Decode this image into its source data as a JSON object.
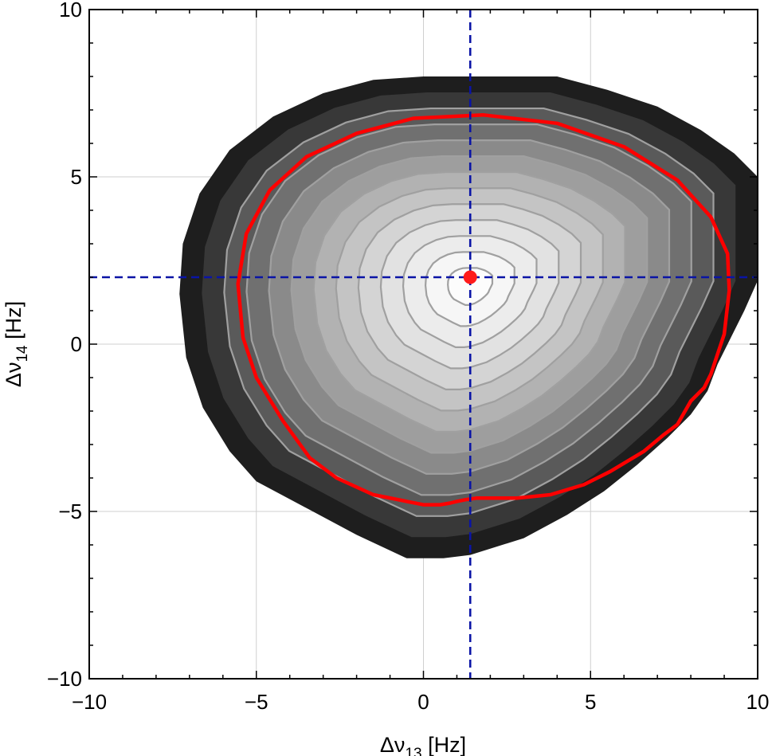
{
  "chart_data": {
    "type": "contour",
    "xlabel_parts": {
      "main": "Δν",
      "sub": "13",
      "unit": " [Hz]"
    },
    "ylabel_parts": {
      "main": "Δν",
      "sub": "14",
      "unit": " [Hz]"
    },
    "xlim": [
      -10,
      10
    ],
    "ylim": [
      -10,
      10
    ],
    "x_ticks": [
      {
        "value": -10,
        "label": "−10"
      },
      {
        "value": -5,
        "label": "−5"
      },
      {
        "value": 0,
        "label": "0"
      },
      {
        "value": 5,
        "label": "5"
      },
      {
        "value": 10,
        "label": "10"
      }
    ],
    "y_ticks": [
      {
        "value": -10,
        "label": "−10"
      },
      {
        "value": -5,
        "label": "−5"
      },
      {
        "value": 0,
        "label": "0"
      },
      {
        "value": 5,
        "label": "5"
      },
      {
        "value": 10,
        "label": "10"
      }
    ],
    "grid": true,
    "colors": {
      "region_levels": [
        "#1e1e1e",
        "#383838",
        "#5a5a5a",
        "#707070",
        "#8a8a8a",
        "#9e9e9e",
        "#b2b2b2",
        "#c4c4c4",
        "#d4d4d4",
        "#e2e2e2",
        "#ececec",
        "#f6f6f6",
        "#fcfcfc"
      ],
      "contour_line": "#a0a0a0",
      "highlight_contour": "#ff0000",
      "reference_lines": "#0a14a6",
      "marker": "#ff1a1a"
    },
    "best_fit_point": {
      "x": 1.4,
      "y": 2.0
    },
    "reference_lines": {
      "x": 1.4,
      "y": 2.0
    },
    "outer_boundary": [
      [
        1.6,
        8.0
      ],
      [
        4.0,
        8.0
      ],
      [
        5.5,
        7.6
      ],
      [
        7.0,
        7.1
      ],
      [
        8.3,
        6.4
      ],
      [
        9.3,
        5.7
      ],
      [
        10.0,
        5.0
      ],
      [
        10.0,
        1.9
      ],
      [
        9.6,
        1.0
      ],
      [
        9.2,
        0.2
      ],
      [
        8.8,
        -0.6
      ],
      [
        8.5,
        -1.4
      ],
      [
        8.0,
        -2.1
      ],
      [
        7.3,
        -2.8
      ],
      [
        6.4,
        -3.6
      ],
      [
        5.4,
        -4.4
      ],
      [
        4.3,
        -5.1
      ],
      [
        3.0,
        -5.8
      ],
      [
        1.4,
        -6.3
      ],
      [
        0.6,
        -6.4
      ],
      [
        -0.5,
        -6.4
      ],
      [
        -2.0,
        -5.7
      ],
      [
        -3.5,
        -4.9
      ],
      [
        -5.0,
        -4.1
      ],
      [
        -5.8,
        -3.2
      ],
      [
        -6.6,
        -1.9
      ],
      [
        -7.1,
        -0.4
      ],
      [
        -7.3,
        1.5
      ],
      [
        -7.2,
        3.0
      ],
      [
        -6.7,
        4.5
      ],
      [
        -5.8,
        5.8
      ],
      [
        -4.5,
        6.8
      ],
      [
        -3.0,
        7.5
      ],
      [
        -1.5,
        7.9
      ],
      [
        0.0,
        8.0
      ]
    ],
    "center": {
      "x": 1.4,
      "y": 1.8
    },
    "red_contour": [
      [
        1.8,
        6.85
      ],
      [
        4.0,
        6.6
      ],
      [
        6.0,
        5.9
      ],
      [
        7.6,
        4.9
      ],
      [
        8.6,
        3.8
      ],
      [
        9.1,
        2.7
      ],
      [
        9.15,
        1.6
      ],
      [
        9.0,
        0.3
      ],
      [
        8.8,
        -0.3
      ],
      [
        8.6,
        -0.9
      ],
      [
        8.4,
        -1.3
      ],
      [
        8.0,
        -1.7
      ],
      [
        7.6,
        -2.4
      ],
      [
        7.2,
        -2.7
      ],
      [
        6.6,
        -3.2
      ],
      [
        5.6,
        -3.8
      ],
      [
        4.8,
        -4.2
      ],
      [
        3.8,
        -4.5
      ],
      [
        2.8,
        -4.6
      ],
      [
        1.6,
        -4.6
      ],
      [
        1.25,
        -4.65
      ],
      [
        1.0,
        -4.7
      ],
      [
        0.8,
        -4.75
      ],
      [
        0.5,
        -4.8
      ],
      [
        0.0,
        -4.8
      ],
      [
        -0.5,
        -4.7
      ],
      [
        -1.5,
        -4.5
      ],
      [
        -2.6,
        -4.0
      ],
      [
        -3.4,
        -3.4
      ],
      [
        -4.2,
        -2.3
      ],
      [
        -5.0,
        -1.0
      ],
      [
        -5.4,
        0.2
      ],
      [
        -5.55,
        1.8
      ],
      [
        -5.3,
        3.3
      ],
      [
        -4.6,
        4.6
      ],
      [
        -3.5,
        5.6
      ],
      [
        -2.0,
        6.3
      ],
      [
        -0.3,
        6.75
      ]
    ]
  }
}
